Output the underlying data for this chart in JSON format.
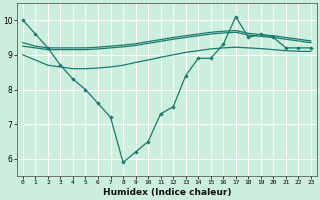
{
  "xlabel": "Humidex (Indice chaleur)",
  "bg_color": "#cceedd",
  "line_color": "#1a7a6e",
  "grid_color": "#ffffff",
  "xlim": [
    -0.5,
    23.5
  ],
  "ylim": [
    5.5,
    10.5
  ],
  "yticks": [
    6,
    7,
    8,
    9,
    10
  ],
  "xticks": [
    0,
    1,
    2,
    3,
    4,
    5,
    6,
    7,
    8,
    9,
    10,
    11,
    12,
    13,
    14,
    15,
    16,
    17,
    18,
    19,
    20,
    21,
    22,
    23
  ],
  "lines": [
    {
      "x": [
        0,
        1,
        2,
        3,
        4,
        5,
        6,
        7,
        8,
        9,
        10,
        11,
        12,
        13,
        14,
        15,
        16,
        17,
        18,
        19,
        20,
        21,
        22,
        23
      ],
      "y": [
        10.0,
        9.6,
        9.2,
        8.7,
        8.3,
        8.0,
        7.6,
        7.2,
        5.9,
        6.2,
        6.5,
        7.3,
        7.5,
        8.4,
        8.9,
        8.9,
        9.3,
        10.1,
        9.5,
        9.6,
        9.5,
        9.2,
        9.2,
        9.2
      ],
      "marker": true
    },
    {
      "x": [
        0,
        1,
        2,
        3,
        4,
        5,
        6,
        7,
        8,
        9,
        10,
        11,
        12,
        13,
        14,
        15,
        16,
        17,
        18,
        19,
        20,
        21,
        22,
        23
      ],
      "y": [
        9.35,
        9.25,
        9.2,
        9.2,
        9.2,
        9.2,
        9.22,
        9.25,
        9.28,
        9.32,
        9.38,
        9.44,
        9.5,
        9.55,
        9.6,
        9.65,
        9.68,
        9.7,
        9.62,
        9.58,
        9.55,
        9.5,
        9.45,
        9.4
      ],
      "marker": false
    },
    {
      "x": [
        0,
        1,
        2,
        3,
        4,
        5,
        6,
        7,
        8,
        9,
        10,
        11,
        12,
        13,
        14,
        15,
        16,
        17,
        18,
        19,
        20,
        21,
        22,
        23
      ],
      "y": [
        9.25,
        9.2,
        9.15,
        9.15,
        9.15,
        9.15,
        9.17,
        9.2,
        9.23,
        9.27,
        9.33,
        9.39,
        9.45,
        9.5,
        9.55,
        9.6,
        9.63,
        9.65,
        9.57,
        9.53,
        9.5,
        9.45,
        9.4,
        9.35
      ],
      "marker": false
    },
    {
      "x": [
        0,
        1,
        2,
        3,
        4,
        5,
        6,
        7,
        8,
        9,
        10,
        11,
        12,
        13,
        14,
        15,
        16,
        17,
        18,
        19,
        20,
        21,
        22,
        23
      ],
      "y": [
        9.0,
        8.85,
        8.7,
        8.65,
        8.6,
        8.6,
        8.62,
        8.65,
        8.7,
        8.78,
        8.85,
        8.93,
        9.0,
        9.07,
        9.12,
        9.17,
        9.2,
        9.22,
        9.2,
        9.18,
        9.15,
        9.12,
        9.1,
        9.1
      ],
      "marker": false
    }
  ]
}
